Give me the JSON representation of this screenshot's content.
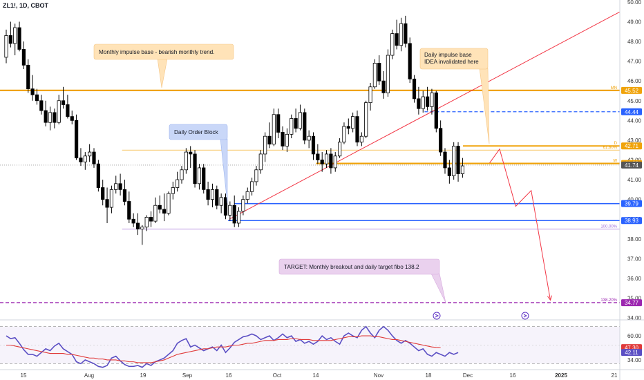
{
  "header": {
    "symbol": "ZL1!, 1D, CBOT"
  },
  "colors": {
    "up": "#ffffff",
    "down": "#000000",
    "wick": "#000000",
    "orange": "#f0a30a",
    "blue": "#2962ff",
    "purple": "#9c27b0",
    "red": "#f23645",
    "rsi": "#5b4fc4",
    "rsi_ma": "#e03a3a"
  },
  "chart_data": [
    {
      "type": "candlestick",
      "price_axis": {
        "ticks": [
          "50.00",
          "49.00",
          "48.00",
          "47.00",
          "46.00",
          "45.00",
          "44.00",
          "43.00",
          "42.00",
          "41.00",
          "40.00",
          "39.00",
          "38.00",
          "37.00",
          "36.00",
          "35.00",
          "34.00"
        ],
        "ylim": [
          33.9,
          50.1
        ]
      },
      "time_axis": {
        "ticks": [
          "15",
          "Aug",
          "19",
          "Sep",
          "16",
          "Oct",
          "14",
          "Nov",
          "18",
          "Dec",
          "16",
          "2025",
          "21"
        ]
      },
      "ohlc": [
        [
          47.2,
          48.6,
          46.9,
          48.3
        ],
        [
          48.3,
          49.0,
          47.7,
          47.9
        ],
        [
          47.9,
          48.9,
          47.3,
          48.7
        ],
        [
          48.7,
          49.0,
          47.5,
          47.6
        ],
        [
          47.6,
          48.0,
          46.6,
          46.8
        ],
        [
          46.8,
          47.1,
          45.4,
          45.6
        ],
        [
          45.6,
          46.3,
          45.0,
          45.3
        ],
        [
          45.3,
          45.6,
          44.8,
          45.0
        ],
        [
          45.0,
          45.3,
          44.3,
          44.5
        ],
        [
          44.5,
          45.0,
          43.7,
          43.9
        ],
        [
          43.9,
          44.7,
          43.5,
          44.4
        ],
        [
          44.4,
          44.6,
          43.6,
          43.9
        ],
        [
          43.9,
          45.3,
          43.8,
          45.0
        ],
        [
          45.0,
          45.7,
          44.6,
          44.8
        ],
        [
          44.8,
          45.3,
          44.1,
          44.2
        ],
        [
          44.2,
          44.5,
          43.8,
          44.0
        ],
        [
          44.0,
          44.3,
          42.0,
          42.1
        ],
        [
          42.1,
          42.6,
          41.7,
          41.9
        ],
        [
          41.9,
          42.4,
          41.5,
          42.2
        ],
        [
          42.2,
          42.8,
          41.9,
          42.4
        ],
        [
          42.4,
          42.6,
          41.6,
          41.8
        ],
        [
          41.8,
          42.0,
          40.4,
          40.6
        ],
        [
          40.6,
          41.0,
          39.7,
          40.0
        ],
        [
          40.0,
          40.6,
          38.8,
          39.6
        ],
        [
          39.6,
          40.7,
          39.3,
          40.5
        ],
        [
          40.5,
          41.2,
          40.3,
          40.8
        ],
        [
          40.8,
          41.3,
          40.2,
          40.5
        ],
        [
          40.5,
          41.0,
          39.7,
          39.9
        ],
        [
          39.9,
          40.4,
          38.8,
          39.0
        ],
        [
          39.0,
          39.3,
          38.6,
          38.8
        ],
        [
          38.8,
          39.3,
          38.2,
          38.5
        ],
        [
          38.5,
          38.7,
          37.7,
          38.6
        ],
        [
          38.6,
          39.2,
          38.4,
          39.1
        ],
        [
          39.1,
          39.4,
          38.6,
          38.9
        ],
        [
          38.9,
          40.1,
          38.8,
          39.7
        ],
        [
          39.7,
          40.2,
          39.3,
          39.5
        ],
        [
          39.5,
          40.3,
          38.9,
          39.3
        ],
        [
          39.3,
          40.4,
          39.2,
          40.3
        ],
        [
          40.3,
          40.9,
          40.0,
          40.6
        ],
        [
          40.6,
          41.4,
          40.4,
          41.0
        ],
        [
          41.0,
          41.7,
          40.8,
          41.5
        ],
        [
          41.5,
          42.6,
          41.3,
          42.4
        ],
        [
          42.4,
          42.7,
          41.6,
          42.3
        ],
        [
          42.3,
          42.5,
          40.6,
          40.8
        ],
        [
          40.8,
          41.8,
          40.5,
          41.6
        ],
        [
          41.6,
          41.8,
          40.3,
          40.5
        ],
        [
          40.5,
          40.9,
          39.7,
          40.0
        ],
        [
          40.0,
          40.8,
          39.6,
          40.5
        ],
        [
          40.5,
          40.7,
          39.5,
          39.7
        ],
        [
          39.7,
          40.3,
          39.3,
          40.1
        ],
        [
          40.1,
          40.3,
          39.0,
          39.2
        ],
        [
          39.2,
          39.9,
          38.9,
          39.7
        ],
        [
          39.7,
          40.2,
          38.6,
          38.8
        ],
        [
          38.8,
          39.6,
          38.6,
          39.4
        ],
        [
          39.4,
          40.2,
          39.2,
          40.0
        ],
        [
          40.0,
          40.6,
          39.8,
          40.4
        ],
        [
          40.4,
          41.1,
          40.2,
          40.9
        ],
        [
          40.9,
          41.7,
          40.7,
          41.5
        ],
        [
          41.5,
          42.5,
          41.3,
          42.3
        ],
        [
          42.3,
          43.4,
          41.9,
          43.2
        ],
        [
          43.2,
          43.9,
          42.6,
          42.8
        ],
        [
          42.8,
          44.6,
          42.7,
          44.3
        ],
        [
          44.3,
          44.6,
          43.1,
          43.4
        ],
        [
          43.4,
          43.7,
          42.5,
          42.7
        ],
        [
          42.7,
          43.6,
          42.4,
          43.3
        ],
        [
          43.3,
          44.3,
          43.1,
          44.1
        ],
        [
          44.1,
          44.6,
          43.4,
          43.6
        ],
        [
          43.6,
          44.8,
          43.5,
          44.4
        ],
        [
          44.4,
          44.6,
          42.8,
          43.0
        ],
        [
          43.0,
          43.5,
          42.6,
          43.2
        ],
        [
          43.2,
          43.4,
          42.0,
          42.3
        ],
        [
          42.3,
          42.8,
          41.8,
          42.0
        ],
        [
          42.0,
          42.4,
          41.4,
          41.8
        ],
        [
          41.8,
          42.5,
          41.6,
          42.3
        ],
        [
          42.3,
          42.6,
          41.3,
          41.6
        ],
        [
          41.6,
          42.4,
          41.4,
          42.2
        ],
        [
          42.2,
          43.1,
          42.1,
          42.9
        ],
        [
          42.9,
          43.9,
          42.8,
          43.7
        ],
        [
          43.7,
          44.1,
          43.3,
          43.6
        ],
        [
          43.6,
          44.4,
          43.4,
          44.2
        ],
        [
          44.2,
          44.5,
          42.7,
          42.9
        ],
        [
          42.9,
          43.4,
          42.7,
          43.2
        ],
        [
          43.2,
          45.0,
          43.1,
          44.9
        ],
        [
          44.9,
          45.9,
          44.5,
          45.7
        ],
        [
          45.7,
          47.1,
          45.6,
          46.9
        ],
        [
          46.9,
          47.3,
          45.8,
          46.0
        ],
        [
          46.0,
          46.5,
          45.1,
          45.4
        ],
        [
          45.4,
          47.6,
          45.2,
          47.3
        ],
        [
          47.3,
          48.6,
          47.1,
          48.4
        ],
        [
          48.4,
          49.1,
          47.6,
          47.8
        ],
        [
          47.8,
          49.2,
          47.5,
          48.9
        ],
        [
          48.9,
          49.3,
          47.7,
          47.9
        ],
        [
          47.9,
          48.2,
          45.9,
          46.1
        ],
        [
          46.1,
          46.3,
          44.9,
          45.1
        ],
        [
          45.1,
          45.7,
          44.3,
          44.6
        ],
        [
          44.6,
          45.5,
          44.4,
          45.2
        ],
        [
          45.2,
          45.7,
          44.5,
          44.7
        ],
        [
          44.7,
          45.6,
          44.3,
          45.4
        ],
        [
          45.4,
          45.5,
          43.4,
          43.6
        ],
        [
          43.6,
          44.0,
          42.2,
          42.4
        ],
        [
          42.4,
          42.6,
          41.3,
          41.6
        ],
        [
          41.6,
          42.0,
          40.8,
          41.2
        ],
        [
          41.2,
          42.9,
          41.0,
          42.7
        ],
        [
          42.7,
          42.9,
          40.9,
          41.3
        ],
        [
          41.3,
          42.1,
          41.1,
          41.7
        ]
      ],
      "levels": [
        {
          "price": 45.52,
          "label": "45.52",
          "tag": "MN",
          "color": "#f0a30a",
          "style": "solid",
          "width": 2.2,
          "x_start": 0
        },
        {
          "price": 44.44,
          "label": "44.44",
          "color": "#2962ff",
          "style": "dash",
          "width": 1.2,
          "x_start": 0.685
        },
        {
          "price": 42.71,
          "label": "42.71",
          "tag": "D",
          "color": "#f0a30a",
          "style": "solid",
          "width": 2,
          "x_start": 0.747
        },
        {
          "price": 42.5,
          "label": "",
          "tag": "61.80%",
          "color": "#f0a30a",
          "style": "solid",
          "width": 0.7,
          "x_start": 0.197
        },
        {
          "price": 41.82,
          "label": "41.82",
          "tag": "W",
          "color": "#f0a30a",
          "style": "solid",
          "width": 2.2,
          "x_start": 0.51
        },
        {
          "price": 41.74,
          "label": "41.74",
          "color": "#9e9e9e",
          "style": "dot",
          "width": 0.8,
          "x_start": 0,
          "label_bg": "#555555"
        },
        {
          "price": 39.79,
          "label": "39.79",
          "color": "#2962ff",
          "style": "solid",
          "width": 1.6,
          "x_start": 0.378
        },
        {
          "price": 38.93,
          "label": "38.93",
          "color": "#2962ff",
          "style": "solid",
          "width": 1.6,
          "x_start": 0.368
        },
        {
          "price": 38.5,
          "label": "",
          "tag": "100.00%",
          "color": "#9c6ad9",
          "style": "solid",
          "width": 0.7,
          "x_start": 0.197
        },
        {
          "price": 34.77,
          "label": "34.77",
          "tag": "138.20%",
          "color": "#9c27b0",
          "style": "dash",
          "width": 1.4,
          "x_start": 0
        }
      ],
      "trendline": {
        "from": [
          0.37,
          39.0
        ],
        "to": [
          1.0,
          49.5
        ],
        "color": "#f23645"
      },
      "projection": [
        [
          0.79,
          41.85
        ],
        [
          0.806,
          42.55
        ],
        [
          0.832,
          39.65
        ],
        [
          0.857,
          40.45
        ],
        [
          0.888,
          34.9
        ]
      ],
      "annotations": [
        {
          "text": "Monthly impulse base - bearish monthly trend.",
          "color": "#ffe3b8",
          "border": "#f5c583"
        },
        {
          "text": "Daily Order Block",
          "color": "#c9d7f8",
          "border": "#9db5ee"
        },
        {
          "text": "Daily impulse base",
          "text2": "IDEA invalidated here",
          "color": "#ffe3b8",
          "border": "#f5c583"
        },
        {
          "text": "TARGET: Monthly breakout and daily target fibo 138.2",
          "color": "#ead1ee",
          "border": "#d6a9de"
        }
      ]
    },
    {
      "type": "line",
      "name": "RSI",
      "y_ticks": [
        "60.00",
        "34.00"
      ],
      "ylim": [
        25,
        75
      ],
      "rsi_label": "42.11",
      "ma_label": "47.30",
      "rsi": [
        60,
        57,
        58,
        52,
        45,
        40,
        40,
        38,
        42,
        46,
        44,
        49,
        52,
        46,
        43,
        40,
        32,
        30,
        34,
        32,
        30,
        27,
        26,
        28,
        36,
        38,
        33,
        29,
        27,
        27,
        28,
        26,
        30,
        28,
        32,
        34,
        36,
        40,
        44,
        52,
        55,
        57,
        48,
        50,
        47,
        44,
        46,
        48,
        44,
        50,
        42,
        47,
        53,
        56,
        59,
        60,
        62,
        60,
        56,
        58,
        60,
        55,
        58,
        62,
        58,
        60,
        54,
        56,
        52,
        54,
        51,
        54,
        60,
        56,
        58,
        54,
        51,
        60,
        63,
        60,
        58,
        66,
        70,
        63,
        58,
        66,
        70,
        66,
        60,
        55,
        52,
        55,
        52,
        48,
        44,
        46,
        40,
        38,
        42,
        40,
        38,
        42,
        40,
        42
      ],
      "rsi_ma": [
        50,
        50,
        49,
        48,
        47,
        46,
        45,
        44,
        43,
        42,
        41,
        41,
        41,
        41,
        40,
        40,
        39,
        38,
        37,
        36,
        36,
        35,
        35,
        34,
        34,
        34,
        33,
        33,
        32,
        32,
        31,
        31,
        31,
        31,
        32,
        33,
        34,
        36,
        38,
        40,
        41,
        42,
        43,
        44,
        45,
        46,
        46,
        47,
        48,
        48,
        48,
        49,
        50,
        50,
        51,
        52,
        52,
        53,
        54,
        55,
        55,
        55,
        56,
        56,
        56,
        57,
        57,
        56,
        56,
        56,
        55,
        55,
        55,
        55,
        55,
        56,
        57,
        58,
        59,
        59,
        59,
        60,
        60,
        60,
        59,
        59,
        58,
        57,
        56,
        56,
        55,
        54,
        53,
        52,
        51,
        50,
        49,
        48,
        47.5,
        47.3
      ]
    }
  ]
}
